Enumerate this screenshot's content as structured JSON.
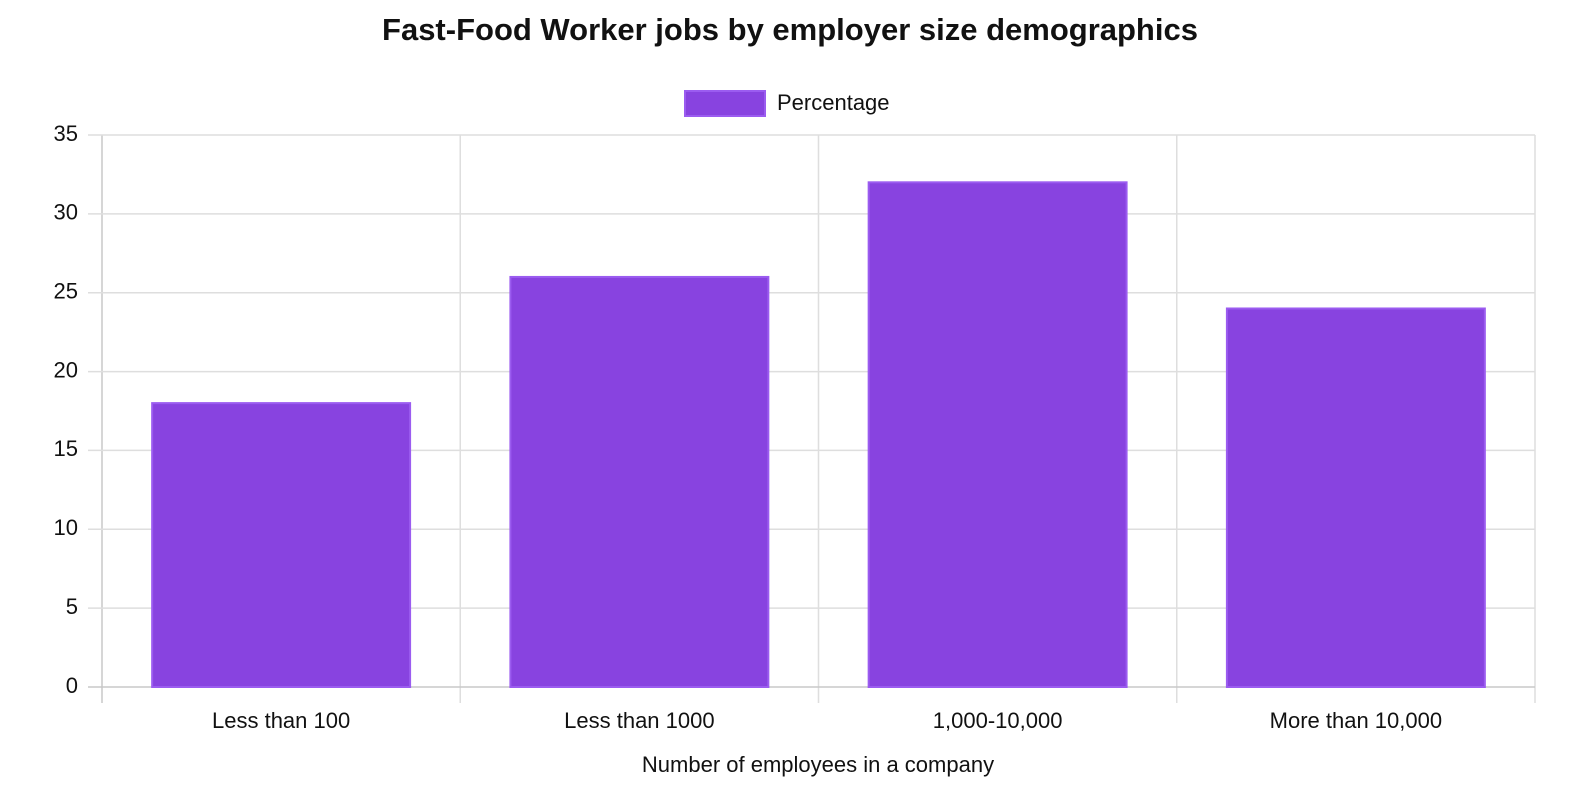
{
  "chart_data": {
    "type": "bar",
    "title": "Fast-Food Worker jobs by employer size demographics",
    "categories": [
      "Less than 100",
      "Less than 1000",
      "1,000-10,000",
      "More than 10,000"
    ],
    "series": [
      {
        "name": "Percentage",
        "color": "#8843e0",
        "values": [
          18,
          26,
          32,
          24
        ]
      }
    ],
    "x_label": "Number of employees in a company",
    "ylim": [
      0,
      35
    ],
    "yticks": [
      0,
      5,
      10,
      15,
      20,
      25,
      30,
      35
    ],
    "grid": true,
    "legend": "top"
  }
}
